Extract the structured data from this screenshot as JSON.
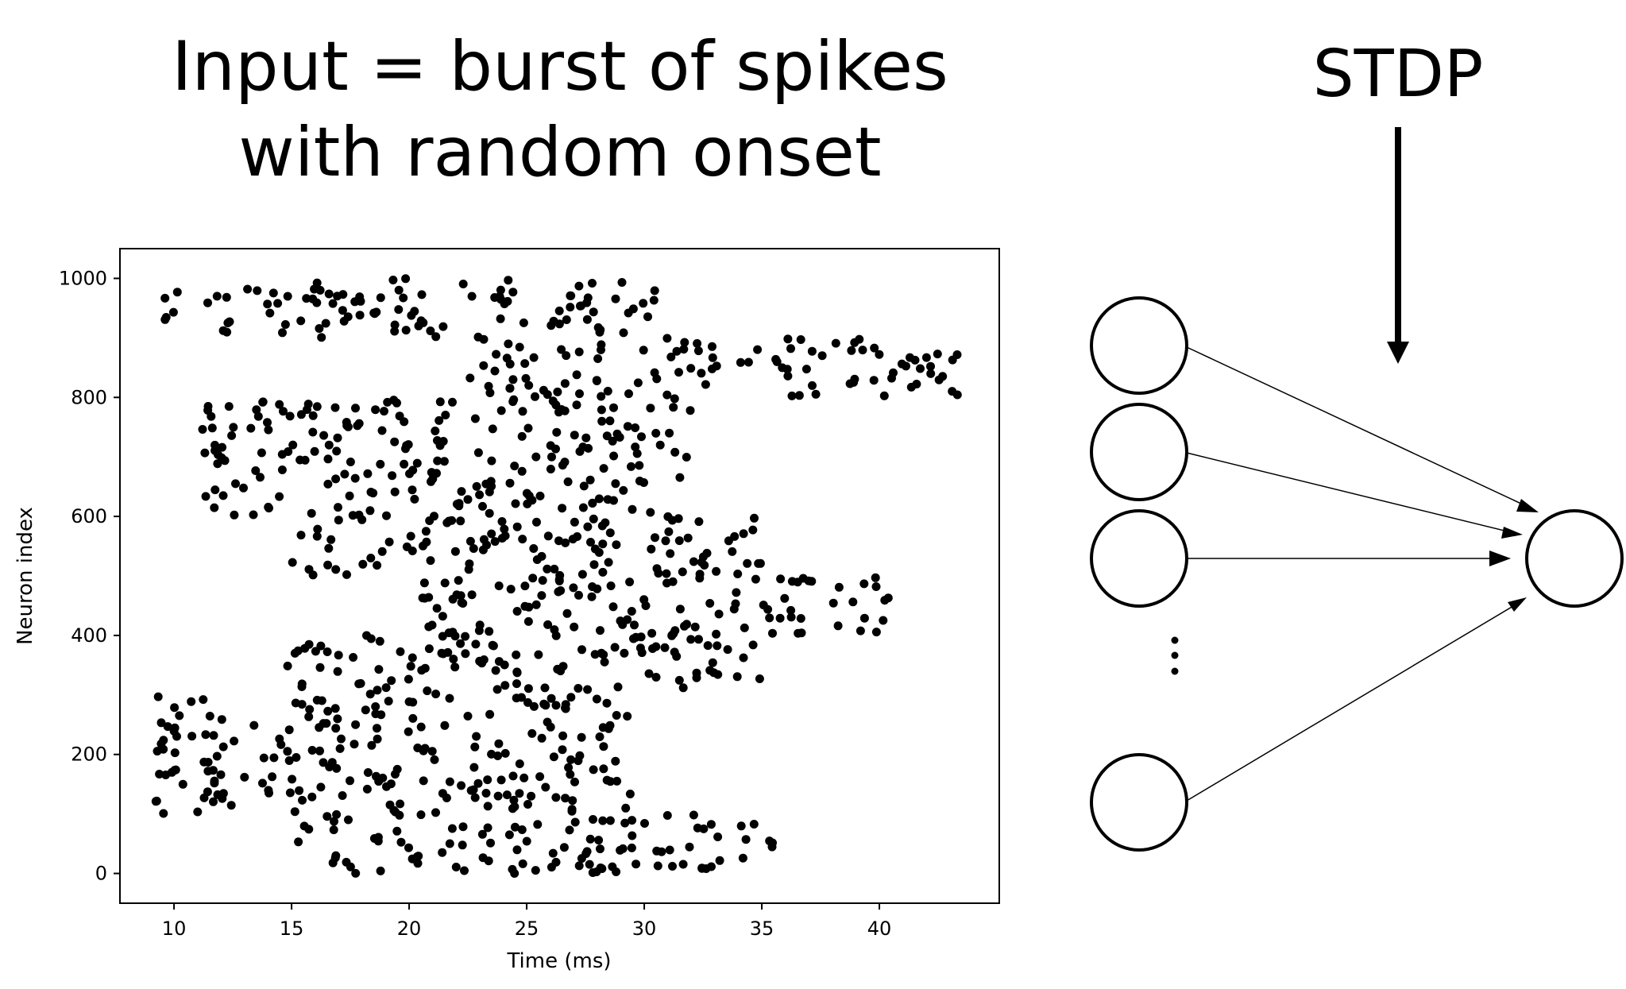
{
  "title_lines": [
    "Input = burst of spikes",
    "with random onset"
  ],
  "stdp_label": "STDP",
  "network": {
    "input_neurons": 4,
    "output_neurons": 1,
    "ellipsis": "⋮"
  },
  "chart_data": {
    "type": "scatter",
    "xlabel": "Time (ms)",
    "ylabel": "Neuron index",
    "xlim": [
      7.7,
      45.1
    ],
    "ylim": [
      -50,
      1050
    ],
    "xticks": [
      10,
      15,
      20,
      25,
      30,
      35,
      40
    ],
    "yticks": [
      0,
      200,
      400,
      600,
      800,
      1000
    ],
    "marker_color": "#000000",
    "bursts": [
      {
        "neurons": [
          900,
          1000
        ],
        "onset_ms": 9.5,
        "end_ms": 30.5
      },
      {
        "neurons": [
          800,
          900
        ],
        "onset_ms": 22.5,
        "end_ms": 43.5
      },
      {
        "neurons": [
          600,
          800
        ],
        "onset_ms": 11.2,
        "end_ms": 32.0
      },
      {
        "neurons": [
          500,
          600
        ],
        "onset_ms": 15.0,
        "end_ms": 35.5
      },
      {
        "neurons": [
          400,
          500
        ],
        "onset_ms": 20.5,
        "end_ms": 41.0
      },
      {
        "neurons": [
          300,
          400
        ],
        "onset_ms": 14.8,
        "end_ms": 35.0
      },
      {
        "neurons": [
          100,
          300
        ],
        "onset_ms": 9.2,
        "end_ms": 29.5
      },
      {
        "neurons": [
          0,
          100
        ],
        "onset_ms": 15.0,
        "end_ms": 35.5
      }
    ]
  }
}
